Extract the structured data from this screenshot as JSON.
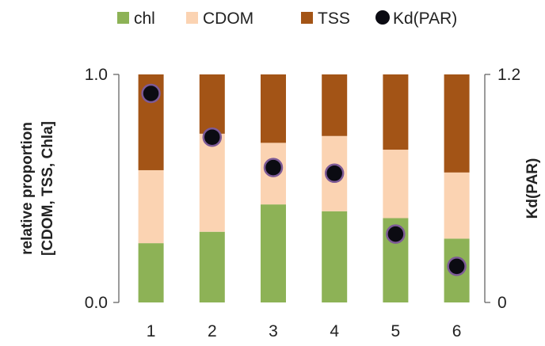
{
  "chart_data": {
    "type": "bar",
    "stacked": true,
    "categories": [
      "1",
      "2",
      "3",
      "4",
      "5",
      "6"
    ],
    "series": [
      {
        "name": "chl",
        "color": "#8db256",
        "values": [
          0.26,
          0.31,
          0.43,
          0.4,
          0.37,
          0.28
        ]
      },
      {
        "name": "CDOM",
        "color": "#fbd3b2",
        "values": [
          0.32,
          0.43,
          0.27,
          0.33,
          0.3,
          0.29
        ]
      },
      {
        "name": "TSS",
        "color": "#a35416",
        "values": [
          0.42,
          0.26,
          0.3,
          0.27,
          0.33,
          0.43
        ]
      }
    ],
    "secondary_series": {
      "name": "Kd(PAR)",
      "color": "#0b0b12",
      "edge_color": "#7d5a96",
      "values": [
        1.1,
        0.87,
        0.71,
        0.68,
        0.36,
        0.19
      ]
    },
    "ylabel_lines": [
      "relative proportion",
      "[CDOM, TSS, Chla]"
    ],
    "ylim": [
      0,
      1
    ],
    "yticks": [
      "0.0",
      "1.0"
    ],
    "y2label": "Kd(PAR)",
    "y2lim": [
      0,
      1.2
    ],
    "y2ticks": [
      "0",
      "1.2"
    ],
    "legend_position": "top"
  }
}
